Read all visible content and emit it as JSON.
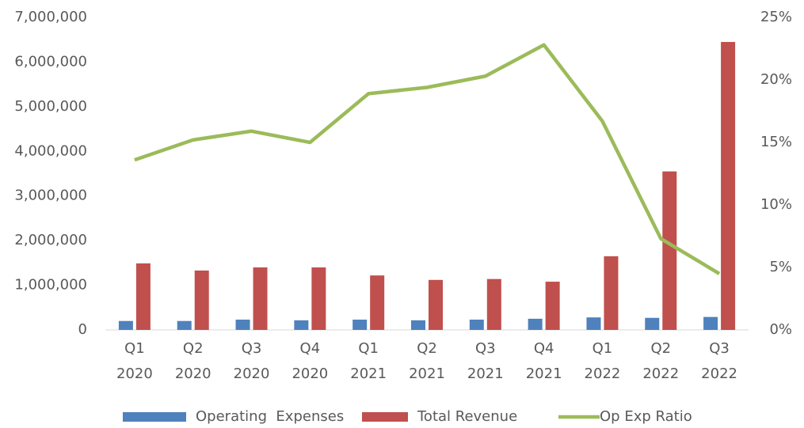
{
  "chart_data": {
    "type": "bar-line",
    "categories": [
      [
        "Q1",
        "2020"
      ],
      [
        "Q2",
        "2020"
      ],
      [
        "Q3",
        "2020"
      ],
      [
        "Q4",
        "2020"
      ],
      [
        "Q1",
        "2021"
      ],
      [
        "Q2",
        "2021"
      ],
      [
        "Q3",
        "2021"
      ],
      [
        "Q4",
        "2021"
      ],
      [
        "Q1",
        "2022"
      ],
      [
        "Q2",
        "2022"
      ],
      [
        "Q3",
        "2022"
      ]
    ],
    "series": [
      {
        "name": "Operating  Expenses",
        "type": "bar",
        "color": "#4f81bd",
        "values": [
          200000,
          200000,
          230000,
          215000,
          230000,
          215000,
          230000,
          250000,
          280000,
          270000,
          290000
        ]
      },
      {
        "name": "Total Revenue",
        "type": "bar",
        "color": "#c0504d",
        "values": [
          1490000,
          1330000,
          1400000,
          1400000,
          1220000,
          1120000,
          1140000,
          1080000,
          1650000,
          3550000,
          6450000
        ]
      },
      {
        "name": "Op Exp Ratio",
        "type": "line",
        "axis": "y2",
        "color": "#9bbb59",
        "values": [
          13.6,
          15.2,
          15.9,
          15.0,
          18.9,
          19.4,
          20.3,
          22.8,
          16.7,
          7.3,
          4.5
        ]
      }
    ],
    "ylim": [
      0,
      7000000
    ],
    "yticks": [
      0,
      {
        "value": 1000000,
        "label": "1,000,000"
      },
      {
        "value": 2000000,
        "label": "2,000,000"
      },
      {
        "value": 3000000,
        "label": "3,000,000"
      },
      {
        "value": 4000000,
        "label": "4,000,000"
      },
      {
        "value": 5000000,
        "label": "5,000,000"
      },
      {
        "value": 6000000,
        "label": "6,000,000"
      },
      {
        "value": 7000000,
        "label": "7,000,000"
      }
    ],
    "y2lim": [
      0,
      25
    ],
    "y2ticks": [
      {
        "value": 0,
        "label": "0%"
      },
      {
        "value": 5,
        "label": "5%"
      },
      {
        "value": 10,
        "label": "10%"
      },
      {
        "value": 15,
        "label": "15%"
      },
      {
        "value": 20,
        "label": "20%"
      },
      {
        "value": 25,
        "label": "25%"
      }
    ],
    "grid": false,
    "legend": "bottom"
  }
}
